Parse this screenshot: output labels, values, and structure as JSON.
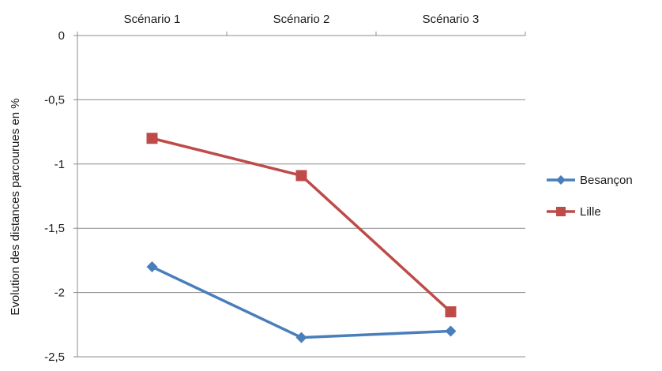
{
  "chart_data": {
    "type": "line",
    "title": "",
    "xlabel": "",
    "ylabel": "Evolution des distances parcourues en %",
    "categories": [
      "Scénario 1",
      "Scénario 2",
      "Scénario 3"
    ],
    "yticks": [
      "0",
      "-0,5",
      "-1",
      "-1,5",
      "-2",
      "-2,5"
    ],
    "ytick_values": [
      0,
      -0.5,
      -1,
      -1.5,
      -2,
      -2.5
    ],
    "ylim": [
      -2.5,
      0
    ],
    "grid": true,
    "x_axis_position": "top",
    "legend_position": "right",
    "series": [
      {
        "name": "Besançon",
        "values": [
          -1.8,
          -2.35,
          -2.3
        ],
        "color": "#4a7ebb",
        "marker": "diamond"
      },
      {
        "name": "Lille",
        "values": [
          -0.8,
          -1.09,
          -2.15
        ],
        "color": "#be4b48",
        "marker": "square"
      }
    ]
  }
}
